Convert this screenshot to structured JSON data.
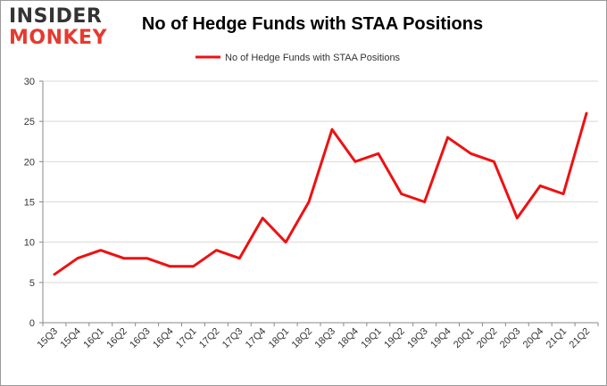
{
  "logo": {
    "top": "INSIDER",
    "bottom": "MONKEY"
  },
  "chart_data": {
    "type": "line",
    "title": "No of Hedge Funds with STAA Positions",
    "xlabel": "",
    "ylabel": "",
    "categories": [
      "15Q3",
      "15Q4",
      "16Q1",
      "16Q2",
      "16Q3",
      "16Q4",
      "17Q1",
      "17Q2",
      "17Q3",
      "17Q4",
      "18Q1",
      "18Q2",
      "18Q3",
      "18Q4",
      "19Q1",
      "19Q2",
      "19Q3",
      "19Q4",
      "20Q1",
      "20Q2",
      "20Q3",
      "20Q4",
      "21Q1",
      "21Q2"
    ],
    "series": [
      {
        "name": "No of Hedge Funds with STAA Positions",
        "color": "#ee1111",
        "values": [
          6,
          8,
          9,
          8,
          8,
          7,
          7,
          9,
          8,
          13,
          10,
          15,
          24,
          20,
          21,
          16,
          15,
          23,
          21,
          20,
          13,
          17,
          16,
          26
        ]
      }
    ],
    "ylim": [
      0,
      30
    ],
    "yticks": [
      0,
      5,
      10,
      15,
      20,
      25,
      30
    ],
    "grid": true,
    "legend": "top-center"
  }
}
